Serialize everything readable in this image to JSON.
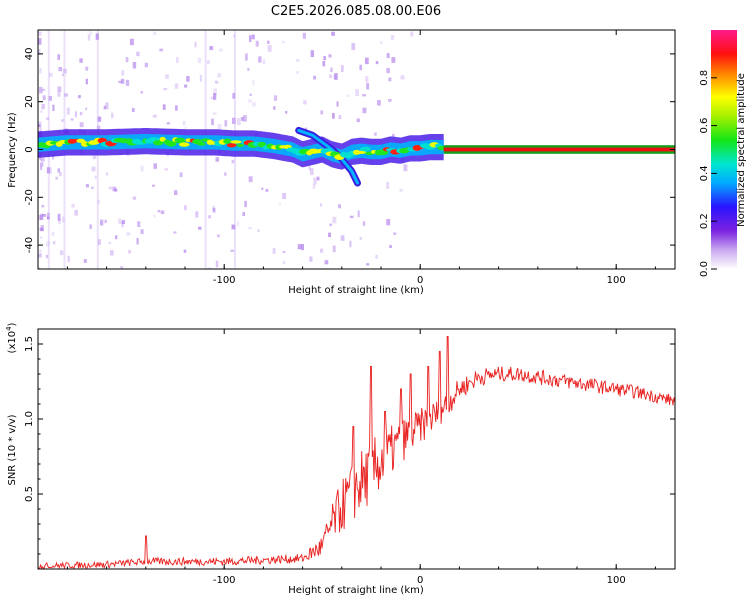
{
  "title": "C2E5.2026.085.08.00.E06",
  "colors": {
    "snr_line": "#e8201e",
    "track_red": "#ee1010",
    "track_green": "#14a01a",
    "background": "#ffffff"
  },
  "chart_data": [
    {
      "type": "heatmap",
      "name": "spectrogram",
      "xlabel": "Height of straight line (km)",
      "ylabel": "Frequency (Hz)",
      "xlim": [
        -195,
        130
      ],
      "ylim": [
        -50,
        50
      ],
      "xticks": [
        -100,
        0,
        100
      ],
      "xtick_labels": [
        "-100",
        "0",
        "100"
      ],
      "yticks": [
        -40,
        -20,
        0,
        20,
        40
      ],
      "ytick_labels": [
        "-40",
        "-20",
        "0",
        "20",
        "40"
      ],
      "colorbar": {
        "label": "Normalized spectral amplitude",
        "range": [
          0,
          1
        ],
        "ticks": [
          0,
          0.2,
          0.4,
          0.6,
          0.8
        ],
        "tick_labels": [
          "0.0",
          "0.2",
          "0.4",
          "0.6",
          "0.8"
        ]
      },
      "track": {
        "description": "dominant Doppler frequency vs height",
        "x": [
          -195,
          -180,
          -160,
          -140,
          -120,
          -105,
          -95,
          -85,
          -75,
          -65,
          -60,
          -55,
          -50,
          -45,
          -40,
          -35,
          -30,
          -25,
          -20,
          -15,
          -10,
          -5,
          0,
          5,
          10,
          130
        ],
        "y": [
          2,
          3,
          3,
          3.5,
          3,
          3,
          2.5,
          2.5,
          1.5,
          0,
          -2,
          -1,
          0,
          -2,
          -3,
          -1,
          -0.5,
          -1,
          -1,
          0,
          -0.5,
          0.5,
          0.5,
          1,
          1,
          0
        ]
      },
      "branch": {
        "description": "secondary descending branch",
        "x": [
          -62,
          -55,
          -50,
          -45,
          -40,
          -35,
          -32
        ],
        "y": [
          8,
          6,
          3,
          0,
          -4,
          -9,
          -14
        ]
      }
    },
    {
      "type": "line",
      "name": "snr",
      "xlabel": "Height of straight line (km)",
      "ylabel": "SNR (10 * v/v)",
      "multiplier_label": "(x10",
      "multiplier_exp": "4",
      "multiplier_close": ")",
      "xlim": [
        -195,
        130
      ],
      "ylim": [
        0,
        1.6
      ],
      "xticks": [
        -100,
        0,
        100
      ],
      "xtick_labels": [
        "-100",
        "0",
        "100"
      ],
      "yticks": [
        0.5,
        1.0,
        1.5
      ],
      "ytick_labels": [
        "0.5",
        "1.0",
        "1.5"
      ],
      "trend": {
        "x": [
          -195,
          -160,
          -140,
          -120,
          -100,
          -80,
          -60,
          -50,
          -45,
          -40,
          -35,
          -30,
          -25,
          -20,
          -15,
          -10,
          -5,
          0,
          5,
          10,
          15,
          20,
          30,
          40,
          50,
          60,
          70,
          80,
          90,
          100,
          110,
          120,
          130
        ],
        "y": [
          0.02,
          0.03,
          0.05,
          0.05,
          0.05,
          0.06,
          0.07,
          0.15,
          0.3,
          0.42,
          0.5,
          0.58,
          0.65,
          0.72,
          0.78,
          0.85,
          0.9,
          0.95,
          1.0,
          1.05,
          1.12,
          1.2,
          1.28,
          1.3,
          1.3,
          1.28,
          1.26,
          1.24,
          1.22,
          1.2,
          1.18,
          1.15,
          1.12
        ]
      },
      "noise": {
        "x": [
          -195,
          -60,
          -50,
          -40,
          -30,
          -20,
          -10,
          0,
          10,
          20,
          40,
          80,
          130
        ],
        "y": [
          0.02,
          0.03,
          0.08,
          0.18,
          0.22,
          0.2,
          0.15,
          0.12,
          0.1,
          0.07,
          0.05,
          0.05,
          0.04
        ]
      },
      "spikes": {
        "x": [
          -140,
          -34,
          -25,
          -18,
          -10,
          -5,
          4,
          10,
          14
        ],
        "y": [
          0.22,
          0.95,
          1.35,
          1.05,
          1.2,
          1.3,
          1.35,
          1.45,
          1.55
        ]
      }
    }
  ]
}
